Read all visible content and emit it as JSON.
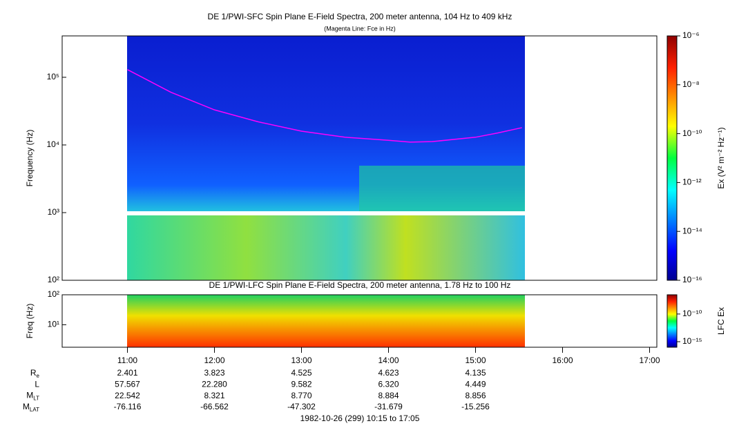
{
  "chart_data": [
    {
      "type": "spectrogram",
      "title": "DE 1/PWI-SFC  Spin Plane E-Field Spectra, 200 meter antenna, 104 Hz to 409 kHz",
      "subtitle": "(Magenta Line: Fce in Hz)",
      "y_label": "Frequency (Hz)",
      "log_y": true,
      "ylim": [
        100,
        409000
      ],
      "yticks": [
        {
          "value": 100,
          "label": "10²"
        },
        {
          "value": 1000,
          "label": "10³"
        },
        {
          "value": 10000,
          "label": "10⁴"
        },
        {
          "value": 100000,
          "label": "10⁵"
        }
      ],
      "colorbar": {
        "label": "Ex (V² m⁻² Hz⁻¹)",
        "lim": [
          1e-16,
          1e-06
        ],
        "ticks": [
          {
            "value": 1e-16,
            "label": "10⁻¹⁶"
          },
          {
            "value": 1e-14,
            "label": "10⁻¹⁴"
          },
          {
            "value": 1e-12,
            "label": "10⁻¹²"
          },
          {
            "value": 1e-10,
            "label": "10⁻¹⁰"
          },
          {
            "value": 1e-08,
            "label": "10⁻⁸"
          },
          {
            "value": 1e-06,
            "label": "10⁻⁶"
          }
        ]
      },
      "line": {
        "color": "#ff00ff",
        "x": [
          "11:00",
          "11:30",
          "12:00",
          "12:30",
          "13:00",
          "13:30",
          "14:00",
          "14:15",
          "14:30",
          "15:00",
          "15:15",
          "15:32"
        ],
        "values": [
          130000,
          60000,
          33000,
          22000,
          16000,
          13000,
          11700,
          11000,
          11200,
          13000,
          15000,
          18000
        ]
      }
    },
    {
      "type": "spectrogram",
      "title": "DE 1/PWI-LFC  Spin Plane E-Field Spectra, 200 meter antenna, 1.78 Hz to 100 Hz",
      "y_label": "Freq (Hz)",
      "log_y": true,
      "ylim": [
        1.78,
        100
      ],
      "yticks": [
        {
          "value": 10,
          "label": "10¹"
        },
        {
          "value": 100,
          "label": "10²"
        }
      ],
      "colorbar": {
        "label": "LFC Ex",
        "lim": [
          1e-16,
          3e-07
        ],
        "ticks": [
          {
            "value": 1e-15,
            "label": "10⁻¹⁵"
          },
          {
            "value": 1e-10,
            "label": "10⁻¹⁰"
          }
        ]
      }
    }
  ],
  "time_axis": {
    "xlim": [
      "10:15",
      "17:05"
    ],
    "xticks": [
      "11:00",
      "12:00",
      "13:00",
      "14:00",
      "15:00",
      "16:00",
      "17:00"
    ]
  },
  "ephemeris": [
    {
      "main": "R",
      "sub": "e",
      "values": [
        "2.401",
        "3.823",
        "4.525",
        "4.623",
        "4.135"
      ]
    },
    {
      "main": "L",
      "values": [
        "57.567",
        "22.280",
        "9.582",
        "6.320",
        "4.449"
      ]
    },
    {
      "main": "M",
      "sub": "LT",
      "values": [
        "22.542",
        "8.321",
        "8.770",
        "8.884",
        "8.856"
      ]
    },
    {
      "main": "M",
      "sub": "LAT",
      "values": [
        "-76.116",
        "-66.562",
        "-47.302",
        "-31.679",
        "-15.256"
      ]
    }
  ],
  "footer": "1982-10-26 (299) 10:15 to 17:05"
}
